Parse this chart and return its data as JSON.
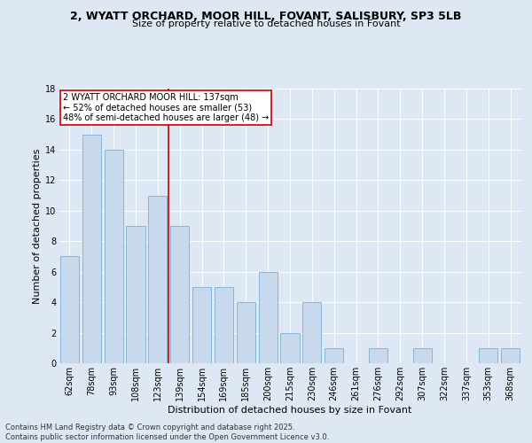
{
  "title1": "2, WYATT ORCHARD, MOOR HILL, FOVANT, SALISBURY, SP3 5LB",
  "title2": "Size of property relative to detached houses in Fovant",
  "xlabel": "Distribution of detached houses by size in Fovant",
  "ylabel": "Number of detached properties",
  "categories": [
    "62sqm",
    "78sqm",
    "93sqm",
    "108sqm",
    "123sqm",
    "139sqm",
    "154sqm",
    "169sqm",
    "185sqm",
    "200sqm",
    "215sqm",
    "230sqm",
    "246sqm",
    "261sqm",
    "276sqm",
    "292sqm",
    "307sqm",
    "322sqm",
    "337sqm",
    "353sqm",
    "368sqm"
  ],
  "values": [
    7,
    15,
    14,
    9,
    11,
    9,
    5,
    5,
    4,
    6,
    2,
    4,
    1,
    0,
    1,
    0,
    1,
    0,
    0,
    1,
    1
  ],
  "bar_color": "#c8d9ee",
  "bar_edgecolor": "#7aafd4",
  "redline_x": 4.5,
  "highlight_line_color": "#cc0000",
  "ylim": [
    0,
    18
  ],
  "yticks": [
    0,
    2,
    4,
    6,
    8,
    10,
    12,
    14,
    16,
    18
  ],
  "annotation_text": "2 WYATT ORCHARD MOOR HILL: 137sqm\n← 52% of detached houses are smaller (53)\n48% of semi-detached houses are larger (48) →",
  "annotation_box_color": "#ffffff",
  "annotation_box_edgecolor": "#cc0000",
  "footer": "Contains HM Land Registry data © Crown copyright and database right 2025.\nContains public sector information licensed under the Open Government Licence v3.0.",
  "background_color": "#dde8f4",
  "plot_background": "#dde8f4",
  "grid_color": "#ffffff",
  "title1_fontsize": 9,
  "title2_fontsize": 8,
  "ylabel_fontsize": 8,
  "xlabel_fontsize": 8,
  "tick_fontsize": 7,
  "footer_fontsize": 6,
  "annot_fontsize": 7
}
